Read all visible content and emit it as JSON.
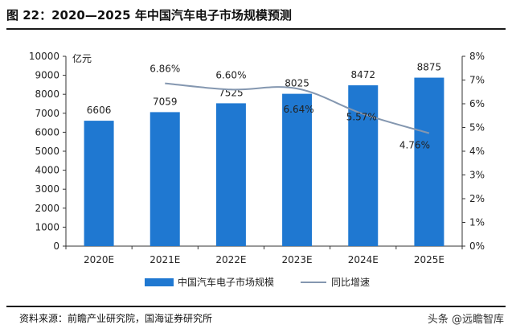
{
  "figure": {
    "title": "图 22：2020—2025 年中国汽车电子市场规模预测",
    "source": "资料来源：前瞻产业研究院，国海证券研究所",
    "brand": "头条 @远瞻智库"
  },
  "colors": {
    "bar": "#1f78d1",
    "line": "#8497b0",
    "axis": "#333333",
    "text": "#222222"
  },
  "chart_data": {
    "type": "bar",
    "categories": [
      "2020E",
      "2021E",
      "2022E",
      "2023E",
      "2024E",
      "2025E"
    ],
    "series": [
      {
        "name": "中国汽车电子市场规模",
        "type": "bar",
        "axis": "left",
        "values": [
          6606,
          7059,
          7525,
          8025,
          8472,
          8875
        ],
        "labels": [
          "6606",
          "7059",
          "7525",
          "8025",
          "8472",
          "8875"
        ]
      },
      {
        "name": "同比增速",
        "type": "line",
        "axis": "right",
        "values": [
          null,
          6.86,
          6.6,
          6.64,
          5.57,
          4.76
        ],
        "labels": [
          "",
          "6.86%",
          "6.60%",
          "6.64%",
          "5.57%",
          "4.76%"
        ]
      }
    ],
    "ylabel": "亿元",
    "ylim": [
      0,
      10000
    ],
    "yticks": [
      0,
      1000,
      2000,
      3000,
      4000,
      5000,
      6000,
      7000,
      8000,
      9000,
      10000
    ],
    "y2lim": [
      0,
      8
    ],
    "y2ticks": [
      "0%",
      "1%",
      "2%",
      "3%",
      "4%",
      "5%",
      "6%",
      "7%",
      "8%"
    ],
    "grid": false,
    "legend_position": "bottom"
  }
}
